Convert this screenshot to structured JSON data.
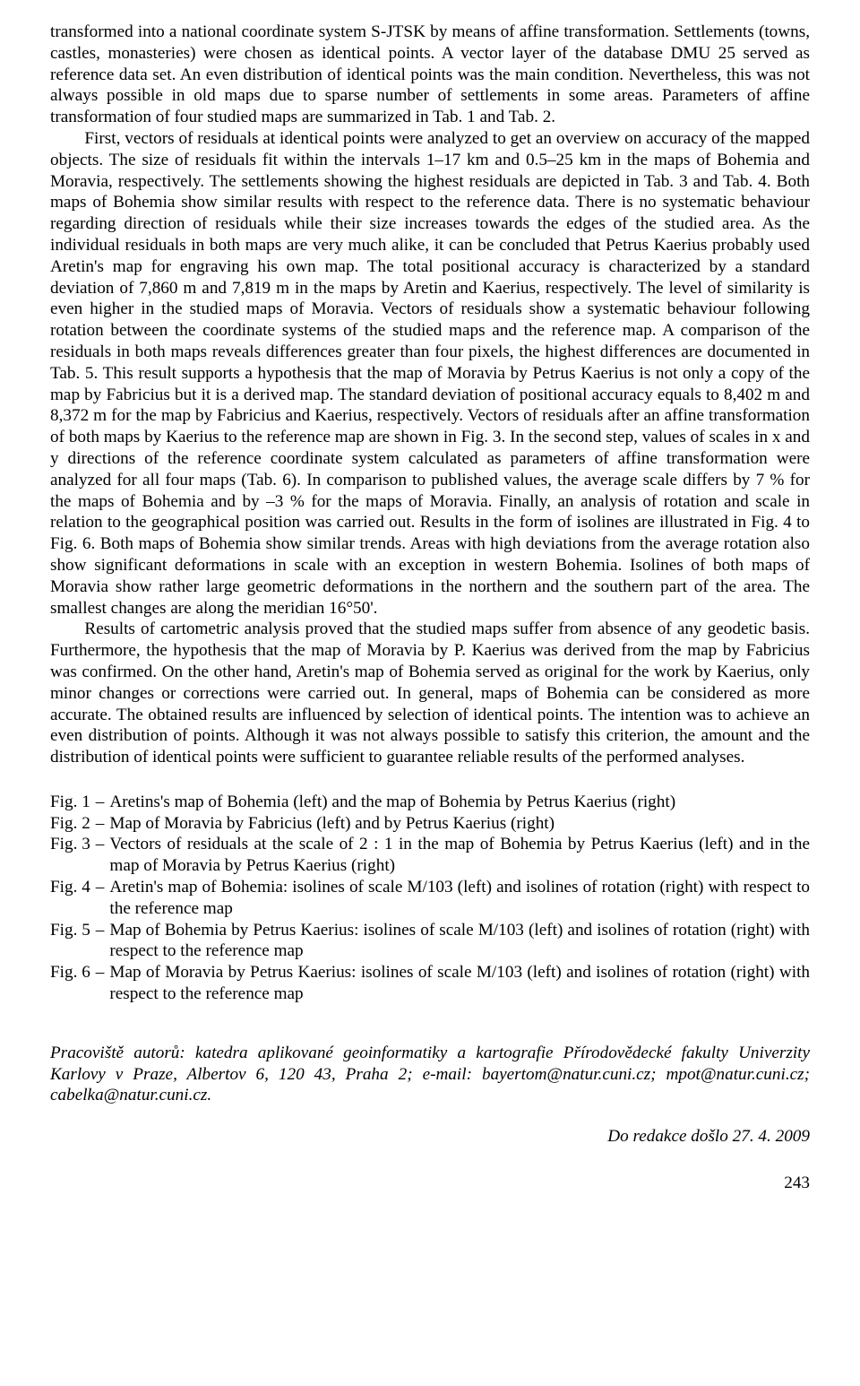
{
  "p1": "transformed into a national coordinate system S-JTSK by means of affine transformation. Settlements (towns, castles, monasteries) were chosen as identical points. A vector layer of the database DMU 25 served as reference data set. An even distribution of identical points was the main condition. Nevertheless, this was not always possible in old maps due to sparse number of settlements in some areas. Parameters of affine transformation of four studied maps are summarized in Tab. 1 and Tab. 2.",
  "p2": "First, vectors of residuals at identical points were analyzed to get an overview on accuracy of the mapped objects. The size of residuals fit within the intervals 1–17 km and 0.5–25 km in the maps of Bohemia and Moravia, respectively. The settlements showing the highest residuals are depicted in Tab. 3 and Tab. 4. Both maps of Bohemia show similar results with respect to the reference data. There is no systematic behaviour regarding direction of residuals while their size increases towards the edges of the studied area. As the individual residuals in both maps are very much alike, it can be concluded that Petrus Kaerius probably used Aretin's map for engraving his own map. The total positional accuracy is characterized by a standard deviation of 7,860 m and 7,819 m in the maps by Aretin and Kaerius, respectively. The level of similarity is even higher in the studied maps of Moravia. Vectors of residuals show a systematic behaviour following rotation between the coordinate systems of the studied maps and the reference map. A comparison of the residuals in both maps reveals differences greater than four pixels, the highest differences are documented in Tab. 5. This result supports a hypothesis that the map of Moravia by Petrus Kaerius is not only a copy of the map by Fabricius but it is a derived map. The standard deviation of positional accuracy equals to 8,402 m and 8,372 m for the map by Fabricius and Kaerius, respectively. Vectors of residuals after an affine transformation of both maps by Kaerius to the reference map are shown in Fig. 3. In the second step, values of scales in x and y directions of the reference coordinate system calculated as parameters of affine transformation were analyzed for all four maps (Tab. 6). In comparison to published values, the average scale differs by 7 % for the maps of Bohemia and by –3 % for the maps of Moravia. Finally, an analysis of rotation and scale in relation to the geographical position was carried out. Results in the form of isolines are illustrated in Fig. 4 to Fig. 6. Both maps of Bohemia show similar trends. Areas with high deviations from the average rotation also show significant deformations in scale with an exception in western Bohemia. Isolines of both maps of Moravia show rather large geometric deformations in the northern and the southern part of the area. The smallest changes are along the meridian 16°50'.",
  "p3": "Results of cartometric analysis proved that the studied maps suffer from absence of any geodetic basis. Furthermore, the hypothesis that the map of Moravia by P. Kaerius was derived from the map by Fabricius was confirmed. On the other hand, Aretin's map of Bohemia served as original for the work by Kaerius, only minor changes or corrections were carried out. In general, maps of Bohemia can be considered as more accurate. The obtained results are influenced by selection of identical points. The intention was to achieve an even distribution of points. Although it was not always possible to satisfy this criterion, the amount and the distribution of identical points were sufficient to guarantee reliable results of the performed analyses.",
  "figs": [
    {
      "label": "Fig. 1",
      "desc": "Aretins's map of Bohemia (left) and the map of Bohemia by Petrus Kaerius (right)"
    },
    {
      "label": "Fig. 2",
      "desc": "Map of Moravia by Fabricius (left) and by Petrus Kaerius (right)"
    },
    {
      "label": "Fig. 3",
      "desc": "Vectors of residuals at the scale of 2 : 1 in the map of Bohemia by Petrus Kaerius (left) and in the map of Moravia by Petrus Kaerius (right)"
    },
    {
      "label": "Fig. 4",
      "desc": "Aretin's map of Bohemia: isolines of scale M/103 (left) and isolines of rotation (right) with respect to the reference map"
    },
    {
      "label": "Fig. 5",
      "desc": "Map of Bohemia by Petrus Kaerius: isolines of scale M/103 (left) and isolines of rotation (right) with respect to the reference map"
    },
    {
      "label": "Fig. 6",
      "desc": "Map of Moravia by Petrus Kaerius: isolines of scale M/103 (left) and isolines of rotation (right) with respect to the reference map"
    }
  ],
  "affil": "Pracoviště autorů: katedra aplikované geoinformatiky a kartografie Přírodovědecké fakulty Univerzity Karlovy v Praze, Albertov 6, 120 43, Praha 2; e-mail: bayertom@natur.cuni.cz; mpot@natur.cuni.cz; cabelka@natur.cuni.cz.",
  "received": "Do redakce došlo 27. 4. 2009",
  "pagenum": "243"
}
